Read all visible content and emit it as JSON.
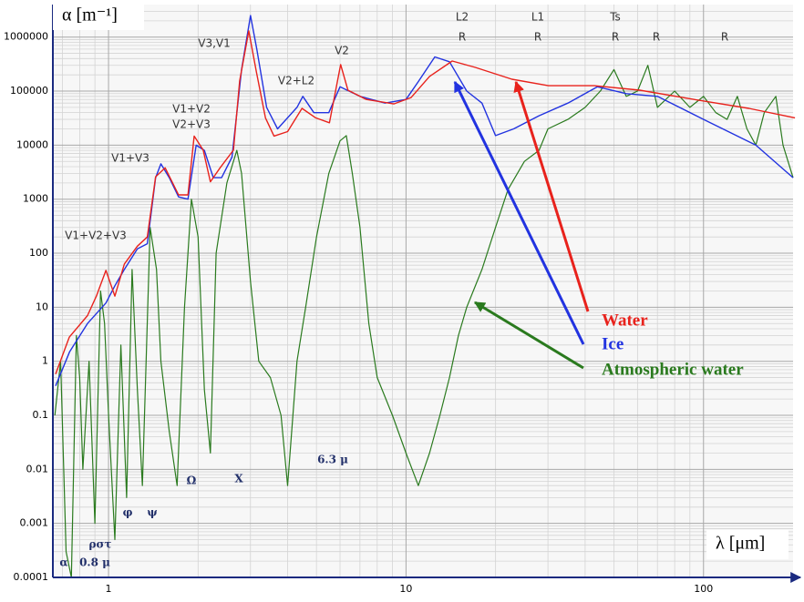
{
  "chart_data": {
    "type": "line",
    "xlabel": "λ [μm]",
    "ylabel": "α [m⁻¹]",
    "xlog": true,
    "ylog": true,
    "grid": true,
    "minor_grid": true,
    "xlim": [
      0.65,
      200
    ],
    "xticks": [
      1,
      10,
      100
    ],
    "ylim": [
      0.0001,
      4000000
    ],
    "yticks": [
      0.0001,
      0.001,
      0.01,
      0.1,
      1,
      10,
      100,
      1000,
      10000,
      100000,
      1000000
    ],
    "series": [
      {
        "name": "Water",
        "color": "#e8221c",
        "x": [
          0.664,
          0.738,
          0.85,
          0.91,
          0.98,
          1.05,
          1.13,
          1.25,
          1.35,
          1.44,
          1.55,
          1.72,
          1.85,
          1.94,
          2.08,
          2.2,
          2.37,
          2.63,
          2.76,
          2.96,
          3.14,
          3.37,
          3.6,
          4.0,
          4.47,
          4.97,
          5.53,
          6.03,
          6.38,
          7.35,
          9.1,
          10.4,
          12,
          14.3,
          17.1,
          22.7,
          30.1,
          42.9,
          61,
          93,
          142,
          203
        ],
        "values": [
          0.58,
          2.8,
          7,
          16,
          48,
          16,
          63,
          135,
          200,
          2600,
          3800,
          1200,
          1200,
          14700,
          8100,
          2100,
          3800,
          8100,
          154000,
          1300000,
          230000,
          32000,
          14700,
          17800,
          48000,
          32000,
          26000,
          310000,
          104000,
          70000,
          58000,
          76000,
          187000,
          360000,
          275000,
          166000,
          126000,
          126000,
          104000,
          70000,
          48000,
          32000
        ]
      },
      {
        "name": "Ice",
        "color": "#2233e0",
        "x": [
          0.664,
          0.74,
          0.85,
          0.98,
          1.05,
          1.13,
          1.25,
          1.35,
          1.44,
          1.5,
          1.6,
          1.72,
          1.85,
          1.97,
          2.1,
          2.25,
          2.4,
          2.6,
          2.8,
          3.0,
          3.15,
          3.4,
          3.7,
          4.3,
          4.5,
          4.9,
          5.5,
          6.0,
          7.0,
          8.5,
          10,
          11,
          12.5,
          14,
          16,
          18,
          20,
          23,
          28,
          35,
          44,
          55,
          70,
          100,
          150,
          200
        ],
        "values": [
          0.35,
          1.5,
          5,
          12,
          25,
          50,
          120,
          150,
          2500,
          4500,
          2500,
          1100,
          1000,
          10000,
          8000,
          2500,
          2500,
          6000,
          250000,
          2500000,
          600000,
          50000,
          20000,
          50000,
          80000,
          40000,
          40000,
          120000,
          80000,
          60000,
          70000,
          150000,
          430000,
          350000,
          100000,
          60000,
          15000,
          20000,
          35000,
          60000,
          120000,
          90000,
          80000,
          30000,
          10000,
          2500
        ]
      },
      {
        "name": "Atmospheric water",
        "color": "#2a7a1e",
        "x": [
          0.66,
          0.69,
          0.72,
          0.75,
          0.78,
          0.8,
          0.82,
          0.86,
          0.9,
          0.94,
          0.97,
          1.0,
          1.05,
          1.1,
          1.15,
          1.2,
          1.25,
          1.3,
          1.38,
          1.45,
          1.5,
          1.6,
          1.7,
          1.8,
          1.9,
          2.0,
          2.1,
          2.2,
          2.3,
          2.5,
          2.7,
          2.8,
          3.0,
          3.2,
          3.5,
          3.8,
          4.0,
          4.3,
          4.6,
          5.0,
          5.5,
          6.0,
          6.3,
          6.6,
          7.0,
          7.5,
          8,
          9,
          10,
          11,
          12,
          13,
          14,
          15,
          16,
          18,
          20,
          22,
          25,
          28,
          30,
          35,
          40,
          45,
          50,
          55,
          60,
          65,
          70,
          80,
          90,
          100,
          110,
          120,
          130,
          140,
          150,
          160,
          175,
          185,
          200
        ],
        "values": [
          0.1,
          1,
          0.0003,
          0.0001,
          3,
          0.5,
          0.01,
          1,
          0.001,
          20,
          5,
          0.1,
          0.0005,
          2,
          0.003,
          50,
          0.3,
          0.005,
          300,
          50,
          1,
          0.05,
          0.005,
          10,
          1000,
          200,
          0.3,
          0.02,
          100,
          2000,
          8000,
          3000,
          30,
          1,
          0.5,
          0.1,
          0.005,
          1,
          10,
          200,
          3000,
          12000,
          15000,
          3000,
          300,
          5,
          0.5,
          0.1,
          0.02,
          0.005,
          0.02,
          0.1,
          0.5,
          3,
          10,
          50,
          300,
          1500,
          5000,
          8000,
          20000,
          30000,
          50000,
          100000,
          250000,
          80000,
          100000,
          300000,
          50000,
          100000,
          50000,
          80000,
          40000,
          30000,
          80000,
          20000,
          10000,
          40000,
          80000,
          10000,
          2500
        ]
      }
    ],
    "annotations": [
      "V1+V2+V3",
      "V1+V3",
      "V1+V2",
      "V2+V3",
      "V3,V1",
      "V2+L2",
      "V2",
      "L2",
      "R",
      "L1",
      "R",
      "Ts",
      "R",
      "R",
      "R",
      "α",
      "0.8 μ",
      "ρστ",
      "φ",
      "ψ",
      "Ω",
      "X",
      "6.3 μ"
    ]
  }
}
